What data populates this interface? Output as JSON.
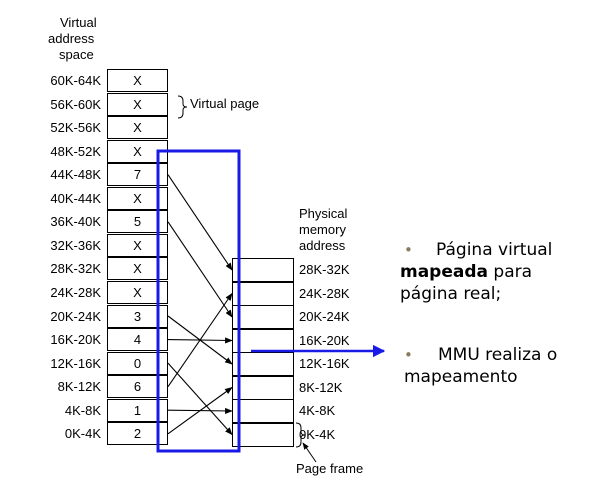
{
  "virtual_header": [
    "Virtual",
    "address",
    "space"
  ],
  "virtual_pages": [
    {
      "range": "60K-64K",
      "value": "X"
    },
    {
      "range": "56K-60K",
      "value": "X"
    },
    {
      "range": "52K-56K",
      "value": "X"
    },
    {
      "range": "48K-52K",
      "value": "X"
    },
    {
      "range": "44K-48K",
      "value": "7"
    },
    {
      "range": "40K-44K",
      "value": "X"
    },
    {
      "range": "36K-40K",
      "value": "5"
    },
    {
      "range": "32K-36K",
      "value": "X"
    },
    {
      "range": "28K-32K",
      "value": "X"
    },
    {
      "range": "24K-28K",
      "value": "X"
    },
    {
      "range": "20K-24K",
      "value": "3"
    },
    {
      "range": "16K-20K",
      "value": "4"
    },
    {
      "range": "12K-16K",
      "value": "0"
    },
    {
      "range": "8K-12K",
      "value": "6"
    },
    {
      "range": "4K-8K",
      "value": "1"
    },
    {
      "range": "0K-4K",
      "value": "2"
    }
  ],
  "virtual_page_label": "Virtual page",
  "physical_header": [
    "Physical",
    "memory",
    "address"
  ],
  "physical_frames": [
    "28K-32K",
    "24K-28K",
    "20K-24K",
    "16K-20K",
    "12K-16K",
    "8K-12K",
    "4K-8K",
    "0K-4K"
  ],
  "page_frame_label": "Page frame",
  "colors": {
    "highlight_box": "#1a1ae6",
    "mmu_arrow": "#1a1ae6",
    "bullet_dot": "#8b7a5e"
  },
  "bullets": [
    {
      "lines": [
        "Página virtual",
        "**mapeada** para",
        "página real;"
      ]
    },
    {
      "lines": [
        "MMU realiza o",
        "mapeamento"
      ]
    }
  ],
  "bullet_render": {
    "b1": {
      "l1": "Página virtual",
      "l2_bold": "mapeada",
      "l2_rest": " para",
      "l3": "página real;"
    },
    "b2": {
      "l1": "MMU realiza o",
      "l2": "mapeamento"
    }
  }
}
